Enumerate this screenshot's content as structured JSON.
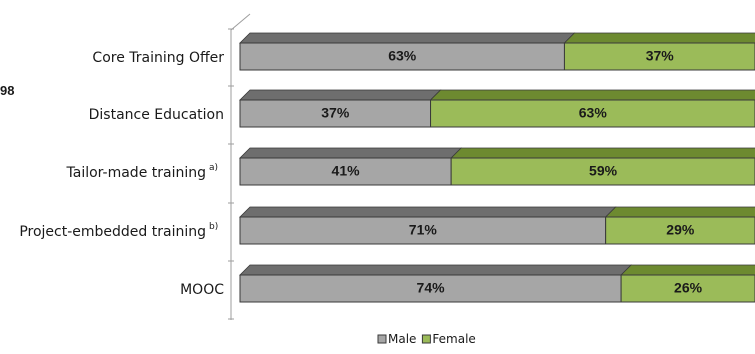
{
  "chart_data": {
    "type": "bar",
    "stacked": true,
    "orientation": "horizontal",
    "percent_stacked": true,
    "view": "3d",
    "categories": [
      {
        "label": "Core Training Offer",
        "superscript": ""
      },
      {
        "label": "Distance Education",
        "superscript": ""
      },
      {
        "label": "Tailor-made training",
        "superscript": "a)"
      },
      {
        "label": "Project-embedded training",
        "superscript": "b)"
      },
      {
        "label": "MOOC",
        "superscript": ""
      }
    ],
    "series": [
      {
        "name": "Male",
        "values": [
          63,
          37,
          41,
          71,
          74
        ],
        "labels": [
          "63%",
          "37%",
          "41%",
          "71%",
          "74%"
        ],
        "color": "#a6a6a6",
        "top_color": "#6e6e6e"
      },
      {
        "name": "Female",
        "values": [
          37,
          63,
          59,
          29,
          26
        ],
        "labels": [
          "37%",
          "63%",
          "59%",
          "29%",
          "26%"
        ],
        "color": "#9bbb59",
        "top_color": "#6d8a30"
      }
    ],
    "xlim": [
      0,
      100
    ],
    "legend_position": "bottom",
    "grid": false
  },
  "left_fragment": "98"
}
